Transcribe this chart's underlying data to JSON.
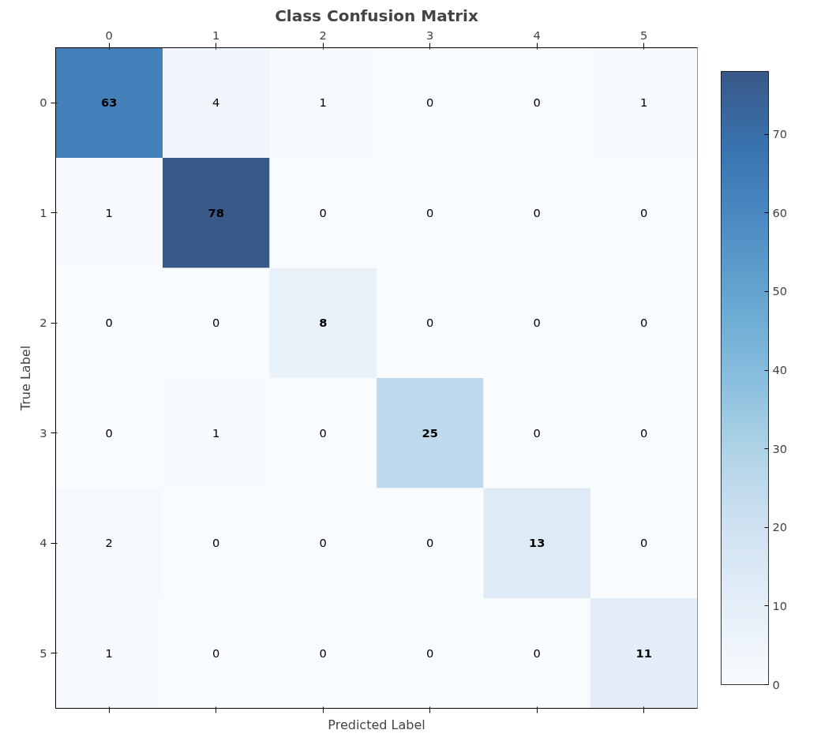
{
  "chart_data": {
    "type": "heatmap",
    "title": "Class Confusion Matrix",
    "xlabel": "Predicted Label",
    "ylabel": "True Label",
    "categories": [
      "0",
      "1",
      "2",
      "3",
      "4",
      "5"
    ],
    "y_categories": [
      "0",
      "1",
      "2",
      "3",
      "4",
      "5"
    ],
    "cells": [
      [
        63,
        4,
        1,
        0,
        0,
        1
      ],
      [
        1,
        78,
        0,
        0,
        0,
        0
      ],
      [
        0,
        0,
        8,
        0,
        0,
        0
      ],
      [
        0,
        1,
        0,
        25,
        0,
        0
      ],
      [
        2,
        0,
        0,
        0,
        13,
        0
      ],
      [
        1,
        0,
        0,
        0,
        0,
        11
      ]
    ],
    "clim": [
      0,
      78
    ],
    "cticks": [
      0,
      10,
      20,
      30,
      40,
      50,
      60,
      70
    ],
    "data_labels": true
  }
}
